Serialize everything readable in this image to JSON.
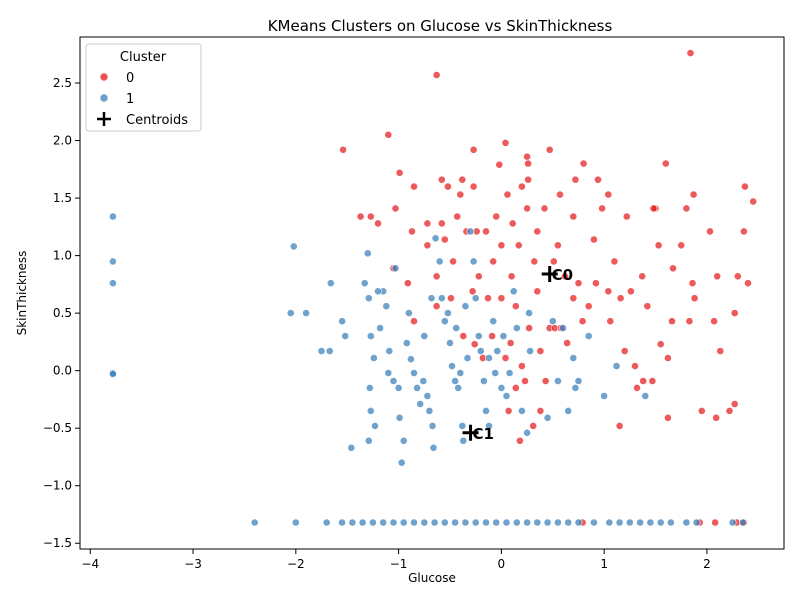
{
  "chart_data": {
    "type": "scatter",
    "title": "KMeans Clusters on Glucose vs SkinThickness",
    "xlabel": "Glucose",
    "ylabel": "SkinThickness",
    "xlim": [
      -4.1,
      2.75
    ],
    "ylim": [
      -1.55,
      2.9
    ],
    "xticks": [
      -4,
      -3,
      -2,
      -1,
      0,
      1,
      2
    ],
    "yticks": [
      -1.5,
      -1.0,
      -0.5,
      0.0,
      0.5,
      1.0,
      1.5,
      2.0,
      2.5
    ],
    "xtick_labels": [
      "−4",
      "−3",
      "−2",
      "−1",
      "0",
      "1",
      "2"
    ],
    "ytick_labels": [
      "−1.5",
      "−1.0",
      "−0.5",
      "0.0",
      "0.5",
      "1.0",
      "1.5",
      "2.0",
      "2.5"
    ],
    "grid": false,
    "legend": {
      "title": "Cluster",
      "placement": "top-left",
      "entries": [
        "0",
        "1",
        "Centroids"
      ]
    },
    "colors": {
      "cluster0": "#e41a1c",
      "cluster1": "#377eb8",
      "centroid": "#000000"
    },
    "series": [
      {
        "name": "0",
        "points": [
          [
            -0.63,
            2.57
          ],
          [
            1.84,
            2.76
          ],
          [
            -1.1,
            2.05
          ],
          [
            0.04,
            1.98
          ],
          [
            0.25,
            1.86
          ],
          [
            -1.54,
            1.92
          ],
          [
            -0.27,
            1.92
          ],
          [
            0.47,
            1.92
          ],
          [
            -0.99,
            1.72
          ],
          [
            -0.02,
            1.79
          ],
          [
            0.26,
            1.8
          ],
          [
            0.8,
            1.8
          ],
          [
            1.6,
            1.8
          ],
          [
            -0.85,
            1.6
          ],
          [
            -0.58,
            1.66
          ],
          [
            -0.38,
            1.66
          ],
          [
            0.26,
            1.66
          ],
          [
            0.72,
            1.66
          ],
          [
            0.94,
            1.66
          ],
          [
            -1.37,
            1.34
          ],
          [
            -1.27,
            1.34
          ],
          [
            -1.03,
            1.41
          ],
          [
            -0.52,
            1.6
          ],
          [
            -0.4,
            1.53
          ],
          [
            -0.27,
            1.6
          ],
          [
            0.06,
            1.53
          ],
          [
            0.2,
            1.6
          ],
          [
            0.57,
            1.53
          ],
          [
            1.04,
            1.53
          ],
          [
            1.5,
            1.41
          ],
          [
            1.87,
            1.53
          ],
          [
            2.37,
            1.6
          ],
          [
            2.45,
            1.47
          ],
          [
            -1.2,
            1.28
          ],
          [
            -0.87,
            1.21
          ],
          [
            -0.72,
            1.28
          ],
          [
            -0.58,
            1.28
          ],
          [
            -0.43,
            1.34
          ],
          [
            -0.24,
            1.21
          ],
          [
            -0.05,
            1.34
          ],
          [
            0.11,
            1.28
          ],
          [
            0.25,
            1.41
          ],
          [
            0.42,
            1.41
          ],
          [
            0.7,
            1.34
          ],
          [
            0.98,
            1.41
          ],
          [
            1.22,
            1.34
          ],
          [
            1.48,
            1.41
          ],
          [
            1.8,
            1.41
          ],
          [
            2.03,
            1.21
          ],
          [
            2.36,
            1.21
          ],
          [
            -0.72,
            1.09
          ],
          [
            -0.55,
            1.14
          ],
          [
            -0.34,
            1.21
          ],
          [
            -0.15,
            1.21
          ],
          [
            0.0,
            1.09
          ],
          [
            0.17,
            1.09
          ],
          [
            0.35,
            1.21
          ],
          [
            0.55,
            1.09
          ],
          [
            0.9,
            1.14
          ],
          [
            1.1,
            0.95
          ],
          [
            1.53,
            1.09
          ],
          [
            1.75,
            1.09
          ],
          [
            2.1,
            0.82
          ],
          [
            -1.05,
            0.89
          ],
          [
            -0.91,
            0.76
          ],
          [
            -0.63,
            0.82
          ],
          [
            -0.47,
            0.95
          ],
          [
            -0.22,
            0.82
          ],
          [
            -0.08,
            0.95
          ],
          [
            0.1,
            0.82
          ],
          [
            0.32,
            0.95
          ],
          [
            0.51,
            0.95
          ],
          [
            0.62,
            0.82
          ],
          [
            0.75,
            0.76
          ],
          [
            0.92,
            0.76
          ],
          [
            1.04,
            0.69
          ],
          [
            1.26,
            0.69
          ],
          [
            1.37,
            0.82
          ],
          [
            1.67,
            0.89
          ],
          [
            1.86,
            0.76
          ],
          [
            2.3,
            0.82
          ],
          [
            2.4,
            0.76
          ],
          [
            -0.85,
            0.43
          ],
          [
            -0.63,
            0.56
          ],
          [
            -0.49,
            0.63
          ],
          [
            -0.28,
            0.69
          ],
          [
            -0.13,
            0.63
          ],
          [
            0.0,
            0.63
          ],
          [
            0.14,
            0.56
          ],
          [
            0.35,
            0.69
          ],
          [
            0.47,
            0.37
          ],
          [
            0.7,
            0.63
          ],
          [
            0.85,
            0.56
          ],
          [
            1.06,
            0.43
          ],
          [
            1.16,
            0.63
          ],
          [
            1.42,
            0.56
          ],
          [
            1.66,
            0.43
          ],
          [
            1.88,
            0.63
          ],
          [
            2.07,
            0.43
          ],
          [
            2.27,
            0.5
          ],
          [
            -0.37,
            0.3
          ],
          [
            -0.26,
            0.23
          ],
          [
            -0.09,
            0.3
          ],
          [
            0.09,
            0.24
          ],
          [
            0.27,
            0.37
          ],
          [
            0.52,
            0.37
          ],
          [
            0.64,
            0.24
          ],
          [
            0.79,
            0.43
          ],
          [
            1.2,
            0.17
          ],
          [
            1.55,
            0.23
          ],
          [
            1.83,
            0.43
          ],
          [
            2.13,
            0.17
          ],
          [
            -0.18,
            0.11
          ],
          [
            0.04,
            0.11
          ],
          [
            0.2,
            0.04
          ],
          [
            0.38,
            0.17
          ],
          [
            0.58,
            0.37
          ],
          [
            1.3,
            0.04
          ],
          [
            1.62,
            0.11
          ],
          [
            0.14,
            -0.15
          ],
          [
            0.23,
            -0.09
          ],
          [
            0.43,
            -0.09
          ],
          [
            1.38,
            -0.09
          ],
          [
            1.47,
            -0.09
          ],
          [
            1.32,
            -0.15
          ],
          [
            1.95,
            -0.35
          ],
          [
            2.22,
            -0.35
          ],
          [
            2.27,
            -0.29
          ],
          [
            2.09,
            -0.41
          ],
          [
            1.62,
            -0.41
          ],
          [
            0.07,
            -0.35
          ],
          [
            0.31,
            -0.48
          ],
          [
            0.38,
            -0.35
          ],
          [
            1.15,
            -0.48
          ],
          [
            0.18,
            -0.61
          ],
          [
            0.79,
            -1.32
          ],
          [
            1.93,
            -1.32
          ],
          [
            2.08,
            -1.32
          ],
          [
            2.29,
            -1.32
          ],
          [
            2.36,
            -1.32
          ]
        ]
      },
      {
        "name": "1",
        "points": [
          [
            -3.78,
            1.34
          ],
          [
            -3.78,
            0.95
          ],
          [
            -3.78,
            0.76
          ],
          [
            -3.78,
            -0.02
          ],
          [
            -3.78,
            -0.03
          ],
          [
            -2.02,
            1.08
          ],
          [
            -2.05,
            0.5
          ],
          [
            -1.9,
            0.5
          ],
          [
            -1.75,
            0.17
          ],
          [
            -1.66,
            0.76
          ],
          [
            -1.67,
            0.17
          ],
          [
            -1.55,
            0.43
          ],
          [
            -1.52,
            0.3
          ],
          [
            -1.46,
            -0.67
          ],
          [
            -1.3,
            1.02
          ],
          [
            -1.33,
            0.76
          ],
          [
            -1.29,
            0.63
          ],
          [
            -1.27,
            0.3
          ],
          [
            -1.24,
            0.11
          ],
          [
            -1.18,
            0.37
          ],
          [
            -1.15,
            0.69
          ],
          [
            -1.12,
            0.56
          ],
          [
            -1.09,
            0.17
          ],
          [
            -1.03,
            0.89
          ],
          [
            -1.28,
            -0.15
          ],
          [
            -1.27,
            -0.35
          ],
          [
            -1.23,
            -0.48
          ],
          [
            -1.29,
            -0.61
          ],
          [
            -1.1,
            -0.02
          ],
          [
            -1.05,
            -0.09
          ],
          [
            -1.0,
            -0.15
          ],
          [
            -0.99,
            -0.41
          ],
          [
            -0.97,
            -0.8
          ],
          [
            -0.95,
            -0.61
          ],
          [
            -0.92,
            0.24
          ],
          [
            -0.88,
            0.1
          ],
          [
            -0.85,
            -0.02
          ],
          [
            -0.82,
            -0.15
          ],
          [
            -0.79,
            -0.29
          ],
          [
            -0.76,
            -0.09
          ],
          [
            -0.72,
            -0.22
          ],
          [
            -0.7,
            -0.35
          ],
          [
            -0.67,
            -0.48
          ],
          [
            -0.66,
            -0.67
          ],
          [
            -0.64,
            1.15
          ],
          [
            -0.6,
            0.95
          ],
          [
            -0.58,
            0.63
          ],
          [
            -0.55,
            0.43
          ],
          [
            -0.5,
            0.24
          ],
          [
            -0.48,
            0.04
          ],
          [
            -0.45,
            -0.09
          ],
          [
            -0.42,
            -0.15
          ],
          [
            -0.4,
            -0.02
          ],
          [
            -0.38,
            -0.48
          ],
          [
            -0.37,
            -0.61
          ],
          [
            -0.33,
            0.11
          ],
          [
            -0.3,
            1.21
          ],
          [
            -0.27,
            0.95
          ],
          [
            -0.25,
            0.63
          ],
          [
            -0.22,
            0.3
          ],
          [
            -0.2,
            0.17
          ],
          [
            -0.17,
            -0.09
          ],
          [
            -0.15,
            -0.35
          ],
          [
            -0.12,
            -0.48
          ],
          [
            -0.08,
            0.43
          ],
          [
            -0.06,
            -0.02
          ],
          [
            -0.04,
            0.17
          ],
          [
            0.0,
            -0.15
          ],
          [
            0.05,
            -0.22
          ],
          [
            0.08,
            -0.02
          ],
          [
            0.12,
            0.69
          ],
          [
            0.15,
            0.37
          ],
          [
            0.2,
            -0.35
          ],
          [
            0.25,
            -0.54
          ],
          [
            0.28,
            0.17
          ],
          [
            0.45,
            -0.41
          ],
          [
            0.55,
            -0.09
          ],
          [
            0.65,
            -0.35
          ],
          [
            0.72,
            -0.15
          ],
          [
            0.75,
            -0.09
          ],
          [
            0.85,
            0.3
          ],
          [
            1.0,
            -0.22
          ],
          [
            1.12,
            0.04
          ],
          [
            1.4,
            -0.22
          ],
          [
            0.5,
            0.43
          ],
          [
            0.6,
            0.37
          ],
          [
            0.7,
            0.11
          ],
          [
            -1.2,
            0.69
          ],
          [
            -0.9,
            0.5
          ],
          [
            -0.75,
            0.3
          ],
          [
            -0.68,
            0.63
          ],
          [
            -0.52,
            0.5
          ],
          [
            -0.44,
            0.37
          ],
          [
            -0.35,
            0.56
          ],
          [
            -0.12,
            0.11
          ],
          [
            0.02,
            0.3
          ],
          [
            0.27,
            0.5
          ],
          [
            -2.4,
            -1.32
          ],
          [
            -2.0,
            -1.32
          ],
          [
            -1.7,
            -1.32
          ],
          [
            -1.55,
            -1.32
          ],
          [
            -1.45,
            -1.32
          ],
          [
            -1.35,
            -1.32
          ],
          [
            -1.25,
            -1.32
          ],
          [
            -1.15,
            -1.32
          ],
          [
            -1.05,
            -1.32
          ],
          [
            -0.95,
            -1.32
          ],
          [
            -0.85,
            -1.32
          ],
          [
            -0.75,
            -1.32
          ],
          [
            -0.65,
            -1.32
          ],
          [
            -0.55,
            -1.32
          ],
          [
            -0.45,
            -1.32
          ],
          [
            -0.35,
            -1.32
          ],
          [
            -0.25,
            -1.32
          ],
          [
            -0.15,
            -1.32
          ],
          [
            -0.05,
            -1.32
          ],
          [
            0.05,
            -1.32
          ],
          [
            0.15,
            -1.32
          ],
          [
            0.25,
            -1.32
          ],
          [
            0.35,
            -1.32
          ],
          [
            0.45,
            -1.32
          ],
          [
            0.55,
            -1.32
          ],
          [
            0.65,
            -1.32
          ],
          [
            0.75,
            -1.32
          ],
          [
            0.9,
            -1.32
          ],
          [
            1.05,
            -1.32
          ],
          [
            1.15,
            -1.32
          ],
          [
            1.25,
            -1.32
          ],
          [
            1.35,
            -1.32
          ],
          [
            1.45,
            -1.32
          ],
          [
            1.55,
            -1.32
          ],
          [
            1.65,
            -1.32
          ],
          [
            1.8,
            -1.32
          ],
          [
            1.9,
            -1.32
          ],
          [
            2.25,
            -1.32
          ],
          [
            2.35,
            -1.32
          ]
        ]
      }
    ],
    "centroids": [
      {
        "label": "C0",
        "x": 0.47,
        "y": 0.84
      },
      {
        "label": "C1",
        "x": -0.3,
        "y": -0.54
      }
    ]
  }
}
